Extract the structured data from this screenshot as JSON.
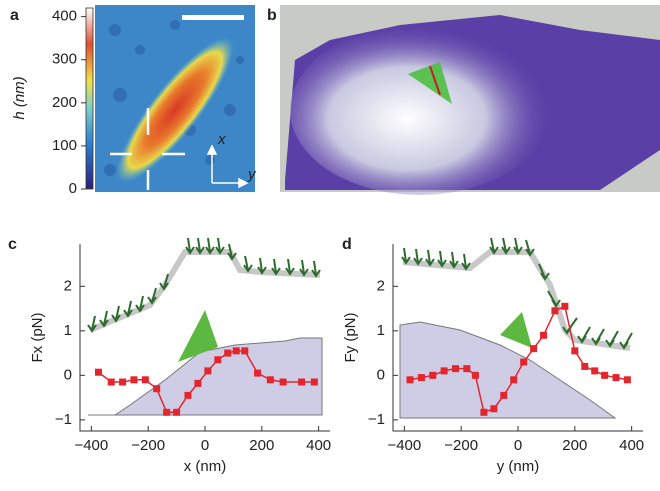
{
  "chart_data": [
    {
      "type": "heatmap",
      "label": "a",
      "ylabel": "h (nm)",
      "ylim": [
        0,
        420
      ],
      "yticks": [
        0,
        100,
        200,
        300,
        400
      ],
      "annotations": [
        "x",
        "y"
      ]
    },
    {
      "type": "render3d",
      "label": "b"
    },
    {
      "type": "line",
      "label": "c",
      "xlabel": "x (nm)",
      "ylabel": "Fx (pN)",
      "xlim": [
        -440,
        440
      ],
      "xticks": [
        {
          "value": -400,
          "label": "−400"
        },
        {
          "value": -200,
          "label": "−200"
        },
        0,
        200,
        400
      ],
      "ylim": [
        -1.25,
        2.95
      ],
      "yticks": [
        {
          "value": -1,
          "label": "−1"
        },
        0,
        1,
        2
      ],
      "x": [
        -375,
        -330,
        -290,
        -250,
        -210,
        -170,
        -135,
        -100,
        -60,
        -25,
        10,
        45,
        80,
        110,
        140,
        185,
        230,
        275,
        340,
        385
      ],
      "series": [
        {
          "color": "#e3262e",
          "values": [
            0.07,
            -0.15,
            -0.15,
            -0.1,
            -0.1,
            -0.3,
            -0.83,
            -0.83,
            -0.45,
            -0.18,
            0.1,
            0.35,
            0.5,
            0.55,
            0.55,
            0.05,
            -0.1,
            -0.15,
            -0.15,
            -0.15
          ]
        }
      ]
    },
    {
      "type": "line",
      "label": "d",
      "xlabel": "y (nm)",
      "ylabel": "Fy (pN)",
      "xlim": [
        -440,
        440
      ],
      "xticks": [
        {
          "value": -400,
          "label": "−400"
        },
        {
          "value": -200,
          "label": "−200"
        },
        0,
        200,
        400
      ],
      "ylim": [
        -1.25,
        2.95
      ],
      "yticks": [
        {
          "value": -1,
          "label": "−1"
        },
        0,
        1,
        2
      ],
      "x": [
        -380,
        -340,
        -300,
        -260,
        -220,
        -180,
        -150,
        -120,
        -85,
        -50,
        -15,
        20,
        55,
        90,
        130,
        165,
        200,
        235,
        270,
        305,
        345,
        385
      ],
      "series": [
        {
          "color": "#e3262e",
          "values": [
            -0.1,
            -0.05,
            0,
            0.1,
            0.15,
            0.15,
            0.0,
            -0.83,
            -0.75,
            -0.45,
            -0.1,
            0.3,
            0.6,
            0.9,
            1.45,
            1.55,
            0.55,
            0.2,
            0.1,
            0.0,
            -0.05,
            -0.1
          ]
        }
      ]
    }
  ]
}
